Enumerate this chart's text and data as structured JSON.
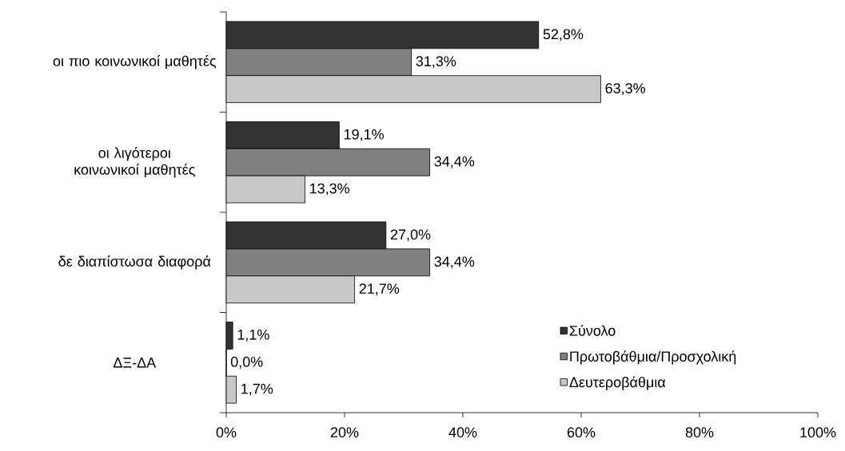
{
  "chart_data": {
    "type": "bar",
    "orientation": "horizontal",
    "categories": [
      "οι πιο κοινωνικοί μαθητές",
      "οι λιγότεροι κοινωνικοί μαθητές",
      "δε διαπίστωσα διαφορά",
      "ΔΞ-ΔΑ"
    ],
    "series": [
      {
        "name": "Σύνολο",
        "color": "#333333",
        "values": [
          52.8,
          19.1,
          27.0,
          1.1
        ],
        "value_labels": [
          "52,8%",
          "19,1%",
          "27,0%",
          "1,1%"
        ]
      },
      {
        "name": "Πρωτοβάθμια/Προσχολική",
        "color": "#808080",
        "values": [
          31.3,
          34.4,
          34.4,
          0.0
        ],
        "value_labels": [
          "31,3%",
          "34,4%",
          "34,4%",
          "0,0%"
        ]
      },
      {
        "name": "Δευτεροβάθμια",
        "color": "#c8c8c8",
        "values": [
          63.3,
          13.3,
          21.7,
          1.7
        ],
        "value_labels": [
          "63,3%",
          "13,3%",
          "21,7%",
          "1,7%"
        ]
      }
    ],
    "xlim": [
      0,
      100
    ],
    "xticks": [
      {
        "value": 0,
        "label": "0%"
      },
      {
        "value": 20,
        "label": "20%"
      },
      {
        "value": 40,
        "label": "40%"
      },
      {
        "value": 60,
        "label": "60%"
      },
      {
        "value": 80,
        "label": "80%"
      },
      {
        "value": 100,
        "label": "100%"
      }
    ],
    "grid": false,
    "legend": "bottom right"
  }
}
